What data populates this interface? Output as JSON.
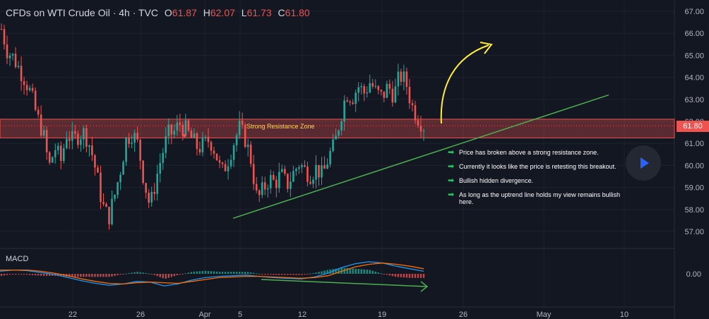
{
  "header": {
    "title": "CFDs on WTI Crude Oil · 4h · TVC",
    "open_label": "O",
    "open": "61.87",
    "high_label": "H",
    "high": "62.07",
    "low_label": "L",
    "low": "61.73",
    "close_label": "C",
    "close": "61.80"
  },
  "macd_label": "MACD",
  "zone_label": "Strong Resistance Zone",
  "last_price": "61.80",
  "notes": [
    "Price has broken above a strong resistance zone.",
    "Currently it looks like the price is retesting this breakout.",
    "Bullish hidden divergence.",
    "As long as the uptrend line holds my view remains bullish here."
  ],
  "icons": {
    "note_bullet": "green-right-arrow-icon",
    "play": "play-icon"
  },
  "colors": {
    "up": "#26a69a",
    "down": "#ef5350",
    "zone": "#ef5350",
    "trendline": "#4caf50",
    "projection_arrow": "#ffeb3b",
    "macd_line": "#2196f3",
    "signal_line": "#ff6d00",
    "background": "#131722",
    "badge": "#ef5350"
  },
  "chart_data": {
    "type": "candlestick",
    "instrument": "CFDs on WTI Crude Oil",
    "timeframe": "4h",
    "x_ticks": [
      "22",
      "26",
      "Apr",
      "5",
      "12",
      "19",
      "26",
      "May",
      "10"
    ],
    "y_ticks": [
      "57.00",
      "58.00",
      "59.00",
      "60.00",
      "61.00",
      "62.00",
      "63.00",
      "64.00",
      "65.00",
      "66.00",
      "67.00"
    ],
    "ylim": [
      56.5,
      67.3
    ],
    "resistance_zone": [
      61.25,
      62.1
    ],
    "close_path": [
      66.2,
      65.2,
      64.9,
      64.4,
      63.9,
      63.2,
      62.2,
      61.5,
      59.9,
      60.8,
      60.2,
      61.5,
      61.1,
      61.4,
      61.5,
      60.8,
      59.6,
      58.2,
      57.6,
      58.6,
      59.8,
      61.2,
      61.5,
      60.9,
      59.3,
      58.1,
      59.4,
      60.5,
      61.4,
      61.5,
      61.9,
      61.6,
      61.2,
      60.8,
      60.9,
      61.2,
      60.6,
      59.6,
      60.2,
      61.0,
      61.7,
      61.2,
      60.2,
      58.4,
      58.9,
      59.4,
      59.2,
      59.6,
      59.1,
      59.6,
      60.1,
      59.8,
      59.6,
      59.9,
      59.5,
      60.4,
      60.9,
      62.2,
      63.3,
      63.1,
      63.6,
      63.3,
      63.8,
      63.3,
      63.1,
      63.6,
      63.2,
      64.1,
      63.8,
      62.7,
      62.2,
      61.8
    ],
    "trendline": {
      "start": [
        "Apr 5",
        57.6
      ],
      "end": [
        "May 8",
        63.2
      ]
    },
    "macd": {
      "zero_label": "0.00",
      "macd": [
        0.4,
        0.6,
        0.5,
        0.2,
        -0.1,
        -0.6,
        -1.1,
        -1.5,
        -1.8,
        -1.6,
        -1.2,
        -1.3,
        -1.9,
        -1.6,
        -1.0,
        -0.6,
        -0.4,
        -0.3,
        -0.2,
        -0.4,
        -0.6,
        -0.7,
        -0.8,
        -0.5,
        0.1,
        1.0,
        1.6,
        1.9,
        1.7,
        1.2,
        0.8,
        0.4
      ],
      "signal": [
        0.6,
        0.6,
        0.6,
        0.4,
        0.1,
        -0.3,
        -0.8,
        -1.2,
        -1.5,
        -1.6,
        -1.4,
        -1.3,
        -1.4,
        -1.5,
        -1.2,
        -0.9,
        -0.6,
        -0.5,
        -0.4,
        -0.4,
        -0.5,
        -0.6,
        -0.7,
        -0.6,
        -0.3,
        0.4,
        1.1,
        1.5,
        1.7,
        1.5,
        1.2,
        0.8
      ]
    },
    "divergence_arrow": "bullish hidden divergence (macd lower low)"
  }
}
